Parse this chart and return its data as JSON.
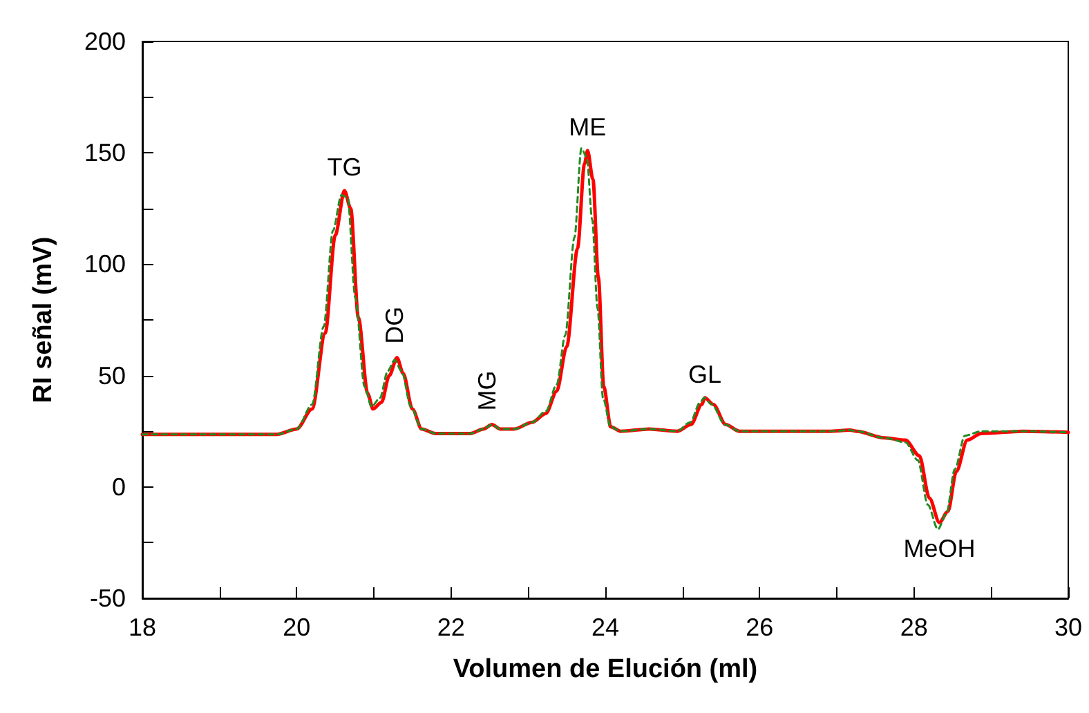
{
  "chart_data": {
    "type": "line",
    "xlabel": "Volumen de Elución (ml)",
    "ylabel": "RI señal (mV)",
    "xlim": [
      18,
      30
    ],
    "xticks": [
      18,
      {
        "value": 19,
        "label": null
      },
      20,
      {
        "value": 21,
        "label": null
      },
      22,
      {
        "value": 23,
        "label": null
      },
      24,
      {
        "value": 25,
        "label": null
      },
      26,
      {
        "value": 27,
        "label": null
      },
      28,
      {
        "value": 29,
        "label": null
      },
      30
    ],
    "ylim": [
      -50,
      200
    ],
    "yticks": [
      -50,
      {
        "value": -25,
        "label": null
      },
      0,
      {
        "value": 25,
        "label": null
      },
      50,
      {
        "value": 75,
        "label": null
      },
      100,
      {
        "value": 125,
        "label": null
      },
      150,
      {
        "value": 175,
        "label": null
      },
      200
    ],
    "grid": false,
    "marker": "none",
    "series": [
      {
        "color": "#ff0000",
        "line_style": "solid",
        "x": [
          18,
          19.74,
          20.0,
          20.2,
          20.37,
          20.5,
          20.62,
          20.7,
          20.8,
          20.92,
          20.99,
          21.1,
          21.2,
          21.3,
          21.38,
          21.5,
          21.62,
          21.8,
          22.25,
          22.42,
          22.53,
          22.64,
          22.82,
          23.05,
          23.23,
          23.37,
          23.5,
          23.64,
          23.73,
          23.77,
          23.84,
          23.91,
          23.98,
          24.07,
          24.2,
          24.57,
          24.93,
          25.11,
          25.25,
          25.29,
          25.4,
          25.56,
          25.74,
          26.9,
          27.17,
          27.26,
          27.62,
          27.89,
          28.07,
          28.2,
          28.33,
          28.44,
          28.55,
          28.69,
          28.87,
          29.41,
          30
        ],
        "values": [
          23.6,
          23.6,
          26,
          35,
          69,
          113,
          133,
          125,
          76,
          42,
          35,
          38,
          50,
          58,
          51,
          35,
          26,
          24,
          24,
          26,
          28,
          26,
          26,
          29,
          33,
          43,
          63,
          107,
          145,
          151,
          138,
          94,
          45,
          27,
          25,
          26,
          25,
          28,
          37,
          40,
          37,
          28,
          25,
          25,
          25.5,
          25,
          22,
          21,
          14,
          -5,
          -16,
          -11,
          7,
          21,
          24,
          25,
          24.5
        ]
      },
      {
        "color": "#228b22",
        "line_style": "dashed",
        "x": [
          18,
          19.74,
          20.0,
          20.2,
          20.35,
          20.47,
          20.58,
          20.66,
          20.76,
          20.88,
          20.97,
          21.08,
          21.18,
          21.27,
          21.36,
          21.48,
          21.62,
          21.8,
          22.25,
          22.42,
          22.53,
          22.64,
          22.82,
          23.05,
          23.23,
          23.37,
          23.48,
          23.6,
          23.69,
          23.76,
          23.83,
          23.9,
          23.97,
          24.07,
          24.2,
          24.57,
          24.93,
          25.1,
          25.23,
          25.28,
          25.38,
          25.55,
          25.74,
          26.9,
          27.17,
          27.26,
          27.62,
          27.89,
          28.05,
          28.18,
          28.31,
          28.42,
          28.53,
          28.66,
          28.87,
          29.41,
          30
        ],
        "values": [
          23.6,
          23.6,
          26,
          37,
          72,
          115,
          131,
          130,
          85,
          45,
          36,
          40,
          52,
          57,
          52,
          36,
          26,
          24,
          24,
          26,
          28,
          26,
          26,
          29,
          34,
          46,
          68,
          112,
          152,
          148,
          120,
          80,
          40,
          27,
          25,
          26,
          25,
          29,
          38,
          40,
          37,
          28,
          25,
          25,
          25.5,
          25,
          22,
          20,
          12,
          -8,
          -19,
          -12,
          8,
          23,
          25,
          25,
          24.5
        ]
      }
    ],
    "annotations": [
      {
        "text": "TG",
        "x": 20.62,
        "y": 133
      },
      {
        "text": "DG",
        "x": 21.3,
        "y": 58
      },
      {
        "text": "MG",
        "x": 22.5,
        "y": 28
      },
      {
        "text": "ME",
        "x": 23.77,
        "y": 151
      },
      {
        "text": "GL",
        "x": 25.29,
        "y": 40
      },
      {
        "text": "MeOH",
        "x": 28.33,
        "y": -16
      }
    ]
  }
}
